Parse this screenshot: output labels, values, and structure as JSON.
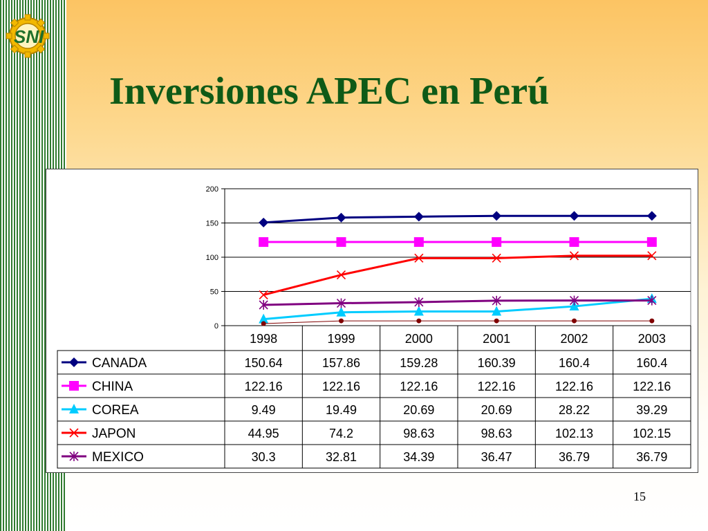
{
  "title": "Inversiones APEC en Perú",
  "logo_text": "SNI",
  "page_number": "15",
  "chart_data": {
    "type": "line",
    "categories": [
      "1998",
      "1999",
      "2000",
      "2001",
      "2002",
      "2003"
    ],
    "ylim": [
      0,
      200
    ],
    "yticks": [
      0,
      50,
      100,
      150,
      200
    ],
    "grid": true,
    "legend": "data-table",
    "series": [
      {
        "name": "CANADA",
        "color": "#000080",
        "marker": "diamond",
        "values": [
          150.64,
          157.86,
          159.28,
          160.39,
          160.4,
          160.4
        ],
        "labels": [
          "150.64",
          "157.86",
          "159.28",
          "160.39",
          "160.4",
          "160.4"
        ]
      },
      {
        "name": "CHINA",
        "color": "#ff00ff",
        "marker": "square",
        "values": [
          122.16,
          122.16,
          122.16,
          122.16,
          122.16,
          122.16
        ],
        "labels": [
          "122.16",
          "122.16",
          "122.16",
          "122.16",
          "122.16",
          "122.16"
        ]
      },
      {
        "name": "COREA",
        "color": "#00ccff",
        "marker": "triangle",
        "values": [
          9.49,
          19.49,
          20.69,
          20.69,
          28.22,
          39.29
        ],
        "labels": [
          "9.49",
          "19.49",
          "20.69",
          "20.69",
          "28.22",
          "39.29"
        ]
      },
      {
        "name": "JAPON",
        "color": "#ff0000",
        "marker": "x",
        "values": [
          44.95,
          74.2,
          98.63,
          98.63,
          102.13,
          102.15
        ],
        "labels": [
          "44.95",
          "74.2",
          "98.63",
          "98.63",
          "102.13",
          "102.15"
        ]
      },
      {
        "name": "MEXICO",
        "color": "#800080",
        "marker": "asterisk",
        "values": [
          30.3,
          32.81,
          34.39,
          36.47,
          36.79,
          36.79
        ],
        "labels": [
          "30.3",
          "32.81",
          "34.39",
          "36.47",
          "36.79",
          "36.79"
        ]
      },
      {
        "name": "",
        "color": "#800000",
        "marker": "circle",
        "values": [
          3,
          7,
          7,
          7,
          7,
          7
        ],
        "in_table": false
      }
    ]
  }
}
